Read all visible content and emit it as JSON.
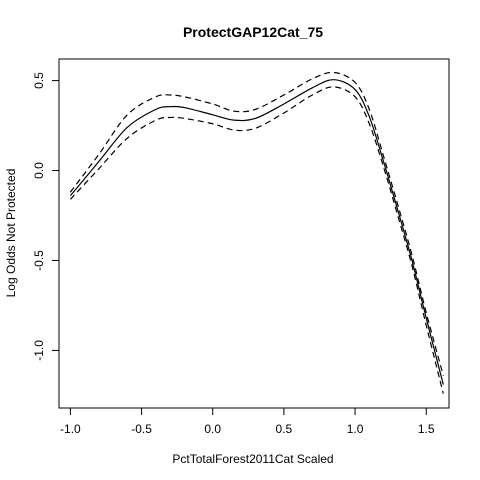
{
  "chart_data": {
    "type": "line",
    "title": "ProtectGAP12Cat_75",
    "xlabel": "PctTotalForest2011Cat Scaled",
    "ylabel": "Log Odds Not Protected",
    "xlim": [
      -1.08,
      1.66
    ],
    "ylim": [
      -1.32,
      0.62
    ],
    "x_ticks": [
      -1.0,
      -0.5,
      0.0,
      0.5,
      1.0,
      1.5
    ],
    "x_tick_labels": [
      "-1.0",
      "-0.5",
      "0.0",
      "0.5",
      "1.0",
      "1.5"
    ],
    "y_ticks": [
      -1.0,
      -0.5,
      0.0,
      0.5
    ],
    "y_tick_labels": [
      "-1.0",
      "-0.5",
      "0.0",
      "0.5"
    ],
    "grid": false,
    "series": [
      {
        "line_style": "solid",
        "x": [
          -1.0,
          -0.8,
          -0.6,
          -0.4,
          -0.3,
          -0.2,
          0.0,
          0.15,
          0.3,
          0.5,
          0.7,
          0.85,
          1.0,
          1.1,
          1.2,
          1.3,
          1.4,
          1.5,
          1.62
        ],
        "y": [
          -0.14,
          0.05,
          0.24,
          0.34,
          0.355,
          0.35,
          0.31,
          0.28,
          0.29,
          0.37,
          0.46,
          0.505,
          0.45,
          0.3,
          0.05,
          -0.22,
          -0.5,
          -0.82,
          -1.19
        ]
      },
      {
        "line_style": "dashed",
        "x": [
          -1.0,
          -0.8,
          -0.6,
          -0.4,
          -0.3,
          -0.2,
          0.0,
          0.15,
          0.3,
          0.5,
          0.7,
          0.85,
          1.0,
          1.1,
          1.2,
          1.3,
          1.4,
          1.5,
          1.62
        ],
        "y": [
          -0.12,
          0.09,
          0.31,
          0.41,
          0.42,
          0.41,
          0.37,
          0.33,
          0.34,
          0.42,
          0.51,
          0.545,
          0.49,
          0.34,
          0.08,
          -0.19,
          -0.47,
          -0.79,
          -1.14
        ]
      },
      {
        "line_style": "dashed",
        "x": [
          -1.0,
          -0.8,
          -0.6,
          -0.4,
          -0.3,
          -0.2,
          0.0,
          0.15,
          0.3,
          0.5,
          0.7,
          0.85,
          1.0,
          1.1,
          1.2,
          1.3,
          1.4,
          1.5,
          1.62
        ],
        "y": [
          -0.16,
          0.01,
          0.18,
          0.28,
          0.295,
          0.29,
          0.26,
          0.225,
          0.235,
          0.32,
          0.42,
          0.465,
          0.41,
          0.26,
          0.02,
          -0.25,
          -0.53,
          -0.86,
          -1.24
        ]
      }
    ]
  }
}
